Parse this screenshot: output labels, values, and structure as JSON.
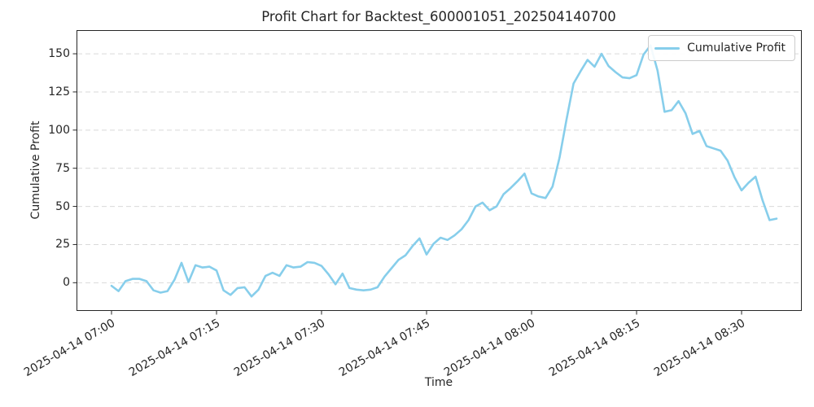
{
  "title": "Profit Chart for Backtest_600001051_202504140700",
  "legend": {
    "label": "Cumulative Profit"
  },
  "chart_data": {
    "type": "line",
    "title": "Profit Chart for Backtest_600001051_202504140700",
    "xlabel": "Time",
    "ylabel": "Cumulative Profit",
    "grid": true,
    "legend_position": "upper right",
    "line_color": "#87CEEB",
    "grid_color": "#d9d9d9",
    "axis_color": "#262626",
    "series_name": "Cumulative Profit",
    "x_start": "2025-04-14 07:00",
    "x_interval_minutes": 1,
    "x_tick_labels": [
      "2025-04-14 07:00",
      "2025-04-14 07:15",
      "2025-04-14 07:30",
      "2025-04-14 07:45",
      "2025-04-14 08:00",
      "2025-04-14 08:15",
      "2025-04-14 08:30"
    ],
    "x_tick_minutes": [
      0,
      15,
      30,
      45,
      60,
      75,
      90
    ],
    "y_ticks": [
      0,
      25,
      50,
      75,
      100,
      125,
      150
    ],
    "ylim": [
      -18.5,
      165.5
    ],
    "xlim_minutes": [
      -5,
      98.6
    ],
    "values": [
      -2,
      -5.5,
      1,
      2.5,
      2.5,
      1,
      -5,
      -6.5,
      -5.5,
      2,
      13,
      0.5,
      11.5,
      10,
      10.5,
      8,
      -5,
      -8,
      -3.5,
      -3,
      -9,
      -4.5,
      4.5,
      6.5,
      4.5,
      11.5,
      10,
      10.5,
      13.5,
      13,
      11,
      5.5,
      -1,
      6,
      -3.5,
      -4.5,
      -5,
      -4.5,
      -3,
      4,
      9.5,
      15,
      18,
      24,
      29,
      18.5,
      25.5,
      29.5,
      28,
      31,
      35,
      41,
      50,
      52.5,
      47.5,
      50,
      58,
      62,
      66.5,
      71.5,
      58.5,
      56.5,
      55.5,
      63,
      82,
      107,
      130.5,
      138.5,
      146,
      141.5,
      150,
      142,
      138,
      134.5,
      134,
      136,
      149.5,
      155.5,
      139,
      112,
      113,
      119,
      111,
      97.5,
      99.5,
      89.5,
      88,
      86.5,
      80,
      69,
      60.5,
      65.5,
      69.5,
      54,
      41,
      42
    ]
  }
}
